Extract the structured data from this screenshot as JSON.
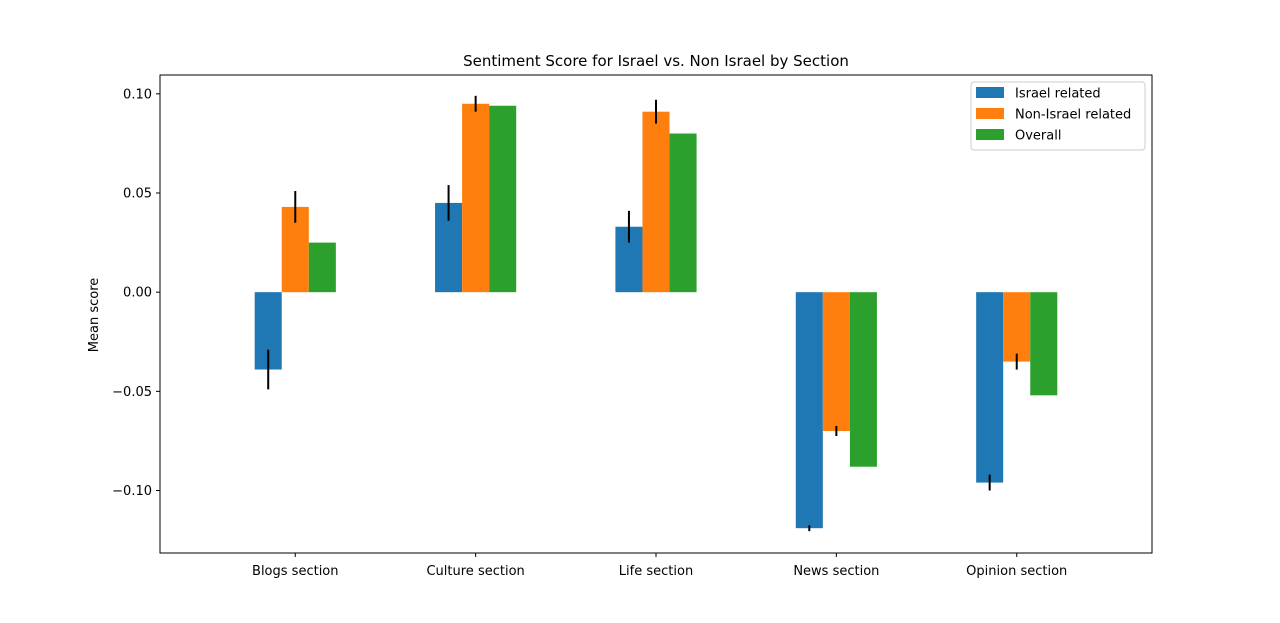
{
  "chart_data": {
    "type": "bar",
    "title": "Sentiment Score for Israel vs. Non Israel by Section",
    "xlabel": "",
    "ylabel": "Mean score",
    "categories": [
      "Blogs section",
      "Culture section",
      "Life section",
      "News section",
      "Opinion section"
    ],
    "series": [
      {
        "name": "Israel related",
        "color": "#1f77b4",
        "values": [
          -0.039,
          0.045,
          0.033,
          -0.119,
          -0.096
        ],
        "errors": [
          0.01,
          0.009,
          0.008,
          0.0015,
          0.004
        ]
      },
      {
        "name": "Non-Israel related",
        "color": "#ff7f0e",
        "values": [
          0.043,
          0.095,
          0.091,
          -0.07,
          -0.035
        ],
        "errors": [
          0.008,
          0.004,
          0.006,
          0.0025,
          0.004
        ]
      },
      {
        "name": "Overall",
        "color": "#2ca02c",
        "values": [
          0.025,
          0.094,
          0.08,
          -0.088,
          -0.052
        ],
        "errors": [
          0,
          0,
          0,
          0,
          0
        ]
      }
    ],
    "yticks": [
      0.1,
      0.05,
      0.0,
      -0.05,
      -0.1
    ],
    "ytick_labels": [
      "0.10",
      "0.05",
      "0.00",
      "−0.05",
      "−0.10"
    ],
    "ylim": [
      -0.1315,
      0.1095
    ],
    "grid": false,
    "legend_position": "top-right"
  }
}
